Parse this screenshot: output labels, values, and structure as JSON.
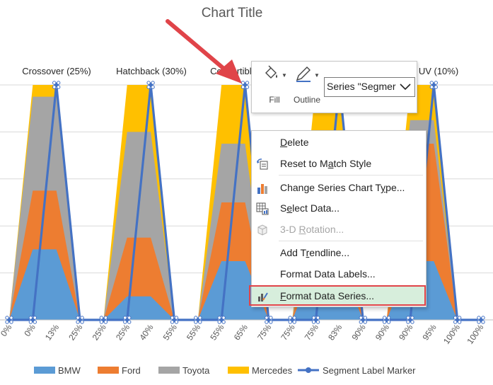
{
  "chart": {
    "title": "Chart Title",
    "segment_labels": [
      "Crossover (25%)",
      "Hatchback (30%)",
      "Convertible",
      "UV (10%)"
    ],
    "tick_labels": [
      "0%",
      "0%",
      "13%",
      "25%",
      "25%",
      "25%",
      "40%",
      "55%",
      "55%",
      "55%",
      "65%",
      "75%",
      "75%",
      "75%",
      "83%",
      "90%",
      "90%",
      "90%",
      "95%",
      "100%",
      "100%"
    ],
    "legend": [
      "BMW",
      "Ford",
      "Toyota",
      "Mercedes",
      "Segment Label Marker"
    ],
    "colors": {
      "BMW": "#5b9bd5",
      "Ford": "#ed7d31",
      "Toyota": "#a5a5a5",
      "Mercedes": "#ffc000",
      "Marker": "#4472c4",
      "Arrow": "#e04449"
    }
  },
  "chart_data": {
    "type": "area",
    "title": "Chart Title",
    "x": [
      "0%",
      "0%",
      "13%",
      "25%",
      "25%",
      "25%",
      "40%",
      "55%",
      "55%",
      "55%",
      "65%",
      "75%",
      "75%",
      "75%",
      "83%",
      "90%",
      "90%",
      "90%",
      "95%",
      "100%",
      "100%"
    ],
    "series": [
      {
        "name": "BMW",
        "values": [
          0,
          0.3,
          0.3,
          0,
          0,
          0.1,
          0.1,
          0,
          0,
          0.25,
          0.25,
          0,
          0,
          0.25,
          0.25,
          0,
          0,
          0.25,
          0.25,
          0,
          0
        ]
      },
      {
        "name": "Ford",
        "values": [
          0,
          0.25,
          0.25,
          0,
          0,
          0.25,
          0.25,
          0,
          0,
          0.25,
          0.25,
          0,
          0,
          0.25,
          0.25,
          0,
          0,
          0.5,
          0.5,
          0,
          0
        ]
      },
      {
        "name": "Toyota",
        "values": [
          0,
          0.4,
          0.4,
          0,
          0,
          0.45,
          0.45,
          0,
          0,
          0.25,
          0.25,
          0,
          0,
          0.25,
          0.25,
          0,
          0,
          0.1,
          0.1,
          0,
          0
        ]
      },
      {
        "name": "Mercedes",
        "values": [
          0,
          0.05,
          0.05,
          0,
          0,
          0.2,
          0.2,
          0,
          0,
          0.25,
          0.25,
          0,
          0,
          0.25,
          0.25,
          0,
          0,
          0.15,
          0.15,
          0,
          0
        ]
      },
      {
        "name": "Segment Label Marker",
        "values": [
          0,
          0,
          1,
          0,
          0,
          0,
          1,
          0,
          0,
          0,
          1,
          0,
          0,
          0,
          1,
          0,
          0,
          0,
          1,
          0,
          0
        ]
      }
    ],
    "ylim": [
      0,
      1
    ],
    "legend_position": "bottom",
    "grid": true
  },
  "toolbar": {
    "fill_label": "Fill",
    "outline_label": "Outline",
    "series_selector_value": "Series \"Segmer"
  },
  "context_menu": {
    "delete": "Delete",
    "reset": "Reset to Match Style",
    "change_type": "Change Series Chart Type...",
    "select_data": "Select Data...",
    "rotation": "3-D Rotation...",
    "add_trendline": "Add Trendline...",
    "format_labels": "Format Data Labels...",
    "format_series": "Format Data Series..."
  }
}
